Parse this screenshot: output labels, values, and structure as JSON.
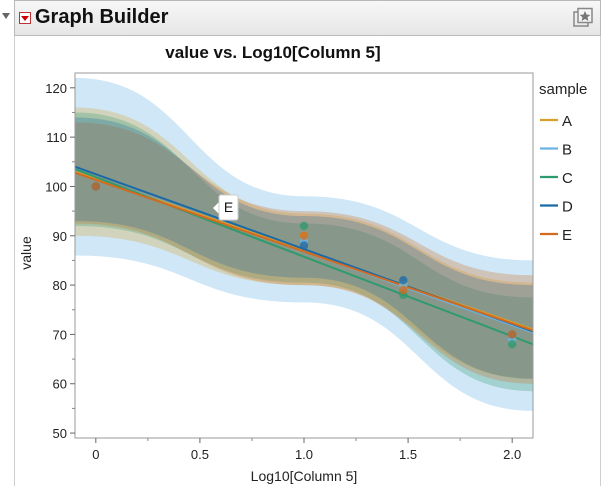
{
  "window": {
    "title": "Graph Builder"
  },
  "icons": {
    "menu": "red-triangle-menu-icon",
    "outline": "disclosure-triangle-icon",
    "star": "star-frame-icon"
  },
  "chart_data": {
    "type": "line",
    "title": "value vs. Log10[Column 5]",
    "xlabel": "Log10[Column 5]",
    "ylabel": "value",
    "xlim": [
      -0.1,
      2.1
    ],
    "ylim": [
      49,
      123
    ],
    "xticks": [
      0,
      0.5,
      1.0,
      1.5,
      2.0
    ],
    "xtick_labels": [
      "0",
      "0.5",
      "1.0",
      "1.5",
      "2.0"
    ],
    "yticks": [
      50,
      60,
      70,
      80,
      90,
      100,
      110,
      120
    ],
    "legend_title": "sample",
    "legend_position": "right",
    "hover_label": "E",
    "series": [
      {
        "name": "A",
        "color": "#d9a028",
        "fit": [
          {
            "x": -0.1,
            "y": 103.0
          },
          {
            "x": 2.1,
            "y": 71.0
          }
        ],
        "band_upper": [
          {
            "x": -0.1,
            "y": 116.0
          },
          {
            "x": 1.0,
            "y": 94.5
          },
          {
            "x": 2.1,
            "y": 80.5
          }
        ],
        "band_lower": [
          {
            "x": -0.1,
            "y": 90.0
          },
          {
            "x": 1.0,
            "y": 80.0
          },
          {
            "x": 2.1,
            "y": 61.0
          }
        ],
        "points": [
          {
            "x": 0,
            "y": 100
          },
          {
            "x": 1.0,
            "y": 90
          },
          {
            "x": 1.477,
            "y": 80
          },
          {
            "x": 2.0,
            "y": 70
          }
        ]
      },
      {
        "name": "B",
        "color": "#6ab4e4",
        "fit": [
          {
            "x": -0.1,
            "y": 103.2
          },
          {
            "x": 2.1,
            "y": 70.4
          }
        ],
        "band_upper": [
          {
            "x": -0.1,
            "y": 122.0
          },
          {
            "x": 1.0,
            "y": 98.0
          },
          {
            "x": 2.1,
            "y": 85.0
          }
        ],
        "band_lower": [
          {
            "x": -0.1,
            "y": 86.0
          },
          {
            "x": 1.0,
            "y": 76.5
          },
          {
            "x": 2.1,
            "y": 54.5
          }
        ],
        "points": [
          {
            "x": 0,
            "y": 100
          },
          {
            "x": 1.0,
            "y": 89
          },
          {
            "x": 1.477,
            "y": 80
          },
          {
            "x": 2.0,
            "y": 69
          }
        ]
      },
      {
        "name": "C",
        "color": "#2e9a6e",
        "fit": [
          {
            "x": -0.1,
            "y": 103.5
          },
          {
            "x": 2.1,
            "y": 68.0
          }
        ],
        "band_upper": [
          {
            "x": -0.1,
            "y": 115.0
          },
          {
            "x": 1.0,
            "y": 92.5
          },
          {
            "x": 2.1,
            "y": 77.5
          }
        ],
        "band_lower": [
          {
            "x": -0.1,
            "y": 92.0
          },
          {
            "x": 1.0,
            "y": 80.5
          },
          {
            "x": 2.1,
            "y": 58.5
          }
        ],
        "points": [
          {
            "x": 0,
            "y": 100
          },
          {
            "x": 1.0,
            "y": 92
          },
          {
            "x": 1.477,
            "y": 78
          },
          {
            "x": 2.0,
            "y": 68
          }
        ]
      },
      {
        "name": "D",
        "color": "#1b6aa8",
        "fit": [
          {
            "x": -0.1,
            "y": 104.0
          },
          {
            "x": 2.1,
            "y": 70.6
          }
        ],
        "band_upper": [
          {
            "x": -0.1,
            "y": 114.0
          },
          {
            "x": 1.0,
            "y": 94.0
          },
          {
            "x": 2.1,
            "y": 80.0
          }
        ],
        "band_lower": [
          {
            "x": -0.1,
            "y": 93.0
          },
          {
            "x": 1.0,
            "y": 81.5
          },
          {
            "x": 2.1,
            "y": 61.0
          }
        ],
        "points": [
          {
            "x": 0,
            "y": 100
          },
          {
            "x": 1.0,
            "y": 88
          },
          {
            "x": 1.477,
            "y": 81
          },
          {
            "x": 2.0,
            "y": 70
          }
        ]
      },
      {
        "name": "E",
        "color": "#d26b20",
        "fit": [
          {
            "x": -0.1,
            "y": 102.8
          },
          {
            "x": 2.1,
            "y": 70.8
          }
        ],
        "band_upper": [
          {
            "x": -0.1,
            "y": 113.0
          },
          {
            "x": 1.0,
            "y": 95.0
          },
          {
            "x": 2.1,
            "y": 82.0
          }
        ],
        "band_lower": [
          {
            "x": -0.1,
            "y": 92.5
          },
          {
            "x": 1.0,
            "y": 80.0
          },
          {
            "x": 2.1,
            "y": 60.0
          }
        ],
        "points": [
          {
            "x": 0,
            "y": 100
          },
          {
            "x": 1.0,
            "y": 90
          },
          {
            "x": 1.477,
            "y": 79
          },
          {
            "x": 2.0,
            "y": 70
          }
        ]
      }
    ]
  }
}
